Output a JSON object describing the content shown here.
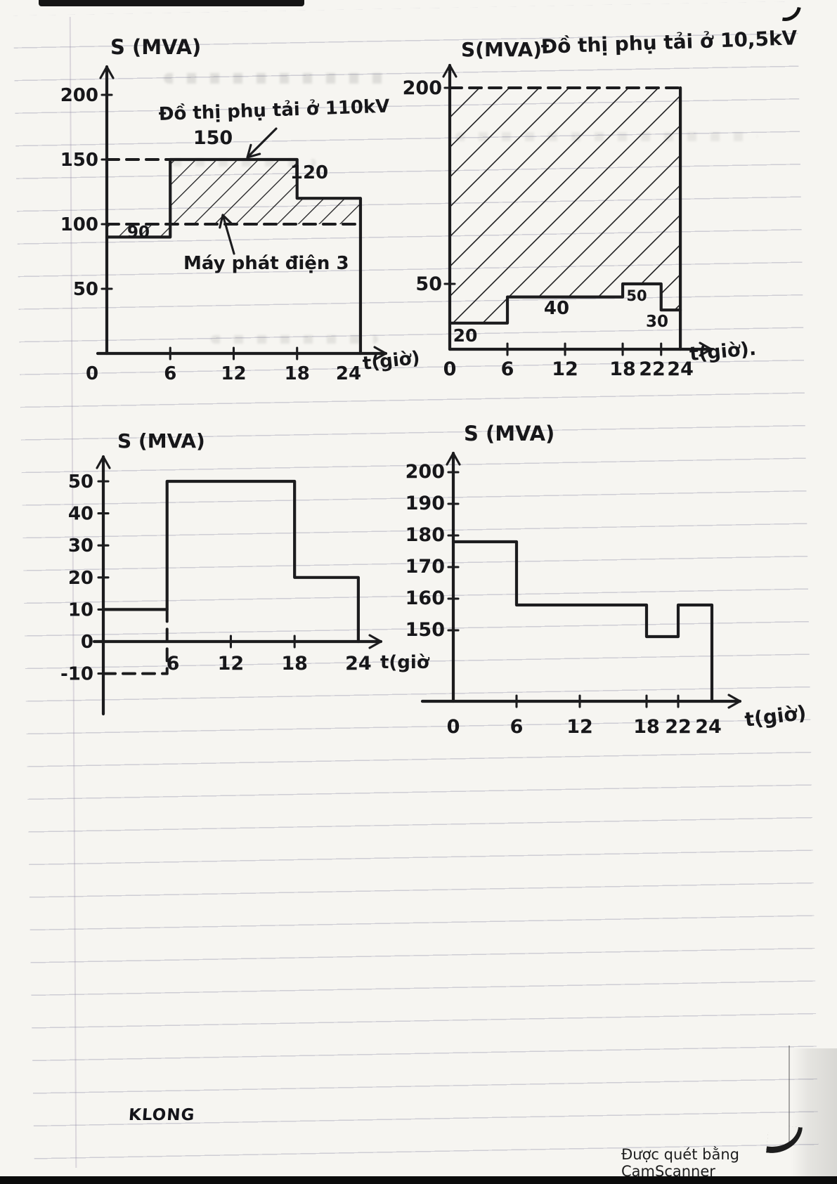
{
  "page": {
    "brand": "KLONG",
    "scanner_note": "Được quét bằng CamScanner"
  },
  "chart_data": [
    {
      "type": "line",
      "name": "load-curve-110kv",
      "title": "",
      "ylabel": "S (MVA)",
      "xlabel": "t(giờ)",
      "xlim": [
        0,
        24
      ],
      "ylim": [
        0,
        200
      ],
      "xticks": [
        0,
        6,
        12,
        18,
        24
      ],
      "yticks": [
        50,
        100,
        150,
        200
      ],
      "grid": false,
      "legend": false,
      "series": [
        {
          "name": "Phụ tải 110kV",
          "type": "step",
          "points": [
            {
              "from": 0,
              "to": 6,
              "value": 90
            },
            {
              "from": 6,
              "to": 18,
              "value": 150
            },
            {
              "from": 18,
              "to": 24,
              "value": 120
            }
          ],
          "value_labels": [
            90,
            150,
            120
          ]
        },
        {
          "name": "Máy phát điện 3",
          "type": "dashed-level",
          "value": 100,
          "from": 0,
          "to": 24
        }
      ],
      "annotations": [
        {
          "text": "Đồ thị phụ tải ở 110kV",
          "points_to": "step at 150 MVA"
        },
        {
          "text": "Máy phát điện 3",
          "points_to": "dashed level 100 MVA"
        }
      ],
      "hatched_between": "load curve and generator level"
    },
    {
      "type": "line",
      "name": "load-curve-10-5kv",
      "title": "Đồ thị phụ tải ở 10,5kV",
      "ylabel": "S(MVA)",
      "xlabel": "t(giờ).",
      "xlim": [
        0,
        24
      ],
      "ylim": [
        0,
        200
      ],
      "xticks": [
        0,
        6,
        12,
        18,
        22,
        24
      ],
      "yticks": [
        50,
        200
      ],
      "grid": false,
      "legend": false,
      "series": [
        {
          "name": "Phụ tải 10,5kV",
          "type": "step",
          "points": [
            {
              "from": 0,
              "to": 6,
              "value": 20
            },
            {
              "from": 6,
              "to": 18,
              "value": 40
            },
            {
              "from": 18,
              "to": 22,
              "value": 50
            },
            {
              "from": 22,
              "to": 24,
              "value": 30
            }
          ],
          "value_labels": [
            20,
            40,
            50,
            30
          ]
        },
        {
          "name": "dashed-200",
          "type": "dashed-level",
          "value": 200,
          "from": 0,
          "to": 24
        }
      ],
      "annotations": [],
      "hatched_between": "load curve and 200 MVA dashed line"
    },
    {
      "type": "line",
      "name": "load-curve-3",
      "title": "",
      "ylabel": "S (MVA)",
      "xlabel": "t(giờ",
      "xlim": [
        0,
        24
      ],
      "ylim": [
        -10,
        50
      ],
      "xticks": [
        6,
        12,
        18,
        24
      ],
      "yticks": [
        50,
        40,
        30,
        20,
        10,
        0,
        -10
      ],
      "grid": false,
      "legend": false,
      "series": [
        {
          "name": "solid step curve",
          "type": "step",
          "points": [
            {
              "from": 0,
              "to": 6,
              "value": 10
            },
            {
              "from": 6,
              "to": 18,
              "value": 50
            },
            {
              "from": 18,
              "to": 24,
              "value": 20
            }
          ],
          "value_labels": []
        },
        {
          "name": "dashed negative segment",
          "type": "dashed-level",
          "value": -10,
          "from": 0,
          "to": 6
        }
      ],
      "annotations": []
    },
    {
      "type": "line",
      "name": "load-curve-4",
      "title": "",
      "ylabel": "S (MVA)",
      "xlabel": "t(giờ)",
      "xlim": [
        0,
        24
      ],
      "ylim": [
        150,
        200
      ],
      "xticks": [
        0,
        6,
        12,
        18,
        22,
        24
      ],
      "yticks": [
        200,
        190,
        180,
        170,
        160,
        150
      ],
      "grid": false,
      "legend": false,
      "series": [
        {
          "name": "solid step curve",
          "type": "step",
          "points": [
            {
              "from": 0,
              "to": 6,
              "value": 180
            },
            {
              "from": 6,
              "to": 18,
              "value": 160
            },
            {
              "from": 18,
              "to": 22,
              "value": 150
            },
            {
              "from": 22,
              "to": 24,
              "value": 160
            }
          ],
          "value_labels": []
        }
      ],
      "annotations": []
    }
  ]
}
